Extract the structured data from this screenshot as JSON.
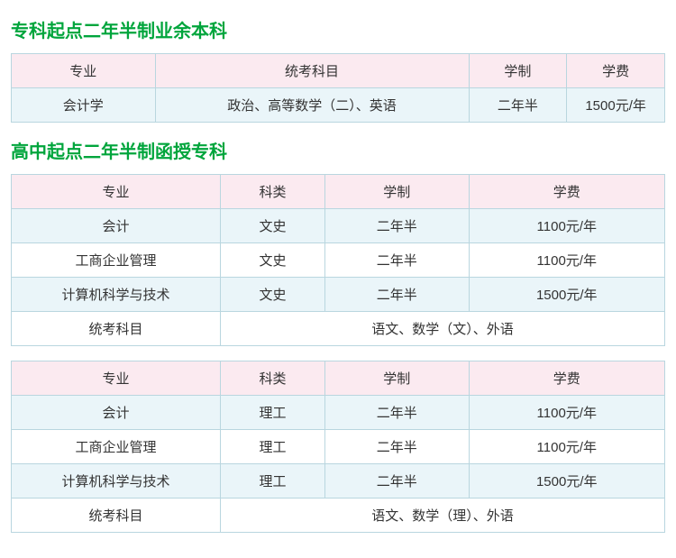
{
  "colors": {
    "title": "#00a53c",
    "header_bg": "#fbeaf0",
    "row_alt_bg": "#eaf5f9",
    "row_bg": "#ffffff",
    "border": "#b9d6df",
    "text": "#333333"
  },
  "section1": {
    "title": "专科起点二年半制业余本科",
    "headers": [
      "专业",
      "统考科目",
      "学制",
      "学费"
    ],
    "col_widths": [
      "22%",
      "48%",
      "15%",
      "15%"
    ],
    "rows": [
      {
        "cells": [
          "会计学",
          "政治、高等数学（二）、英语",
          "二年半",
          "1500元/年"
        ],
        "alt": true
      }
    ]
  },
  "section2": {
    "title": "高中起点二年半制函授专科",
    "tables": [
      {
        "headers": [
          "专业",
          "科类",
          "学制",
          "学费"
        ],
        "col_widths": [
          "32%",
          "16%",
          "22%",
          "30%"
        ],
        "rows": [
          {
            "cells": [
              "会计",
              "文史",
              "二年半",
              "1100元/年"
            ],
            "alt": true
          },
          {
            "cells": [
              "工商企业管理",
              "文史",
              "二年半",
              "1100元/年"
            ],
            "alt": false
          },
          {
            "cells": [
              "计算机科学与技术",
              "文史",
              "二年半",
              "1500元/年"
            ],
            "alt": true
          }
        ],
        "footer": {
          "label": "统考科目",
          "value": "语文、数学（文）、外语"
        }
      },
      {
        "headers": [
          "专业",
          "科类",
          "学制",
          "学费"
        ],
        "col_widths": [
          "32%",
          "16%",
          "22%",
          "30%"
        ],
        "rows": [
          {
            "cells": [
              "会计",
              "理工",
              "二年半",
              "1100元/年"
            ],
            "alt": true
          },
          {
            "cells": [
              "工商企业管理",
              "理工",
              "二年半",
              "1100元/年"
            ],
            "alt": false
          },
          {
            "cells": [
              "计算机科学与技术",
              "理工",
              "二年半",
              "1500元/年"
            ],
            "alt": true
          }
        ],
        "footer": {
          "label": "统考科目",
          "value": "语文、数学（理）、外语"
        }
      }
    ]
  }
}
